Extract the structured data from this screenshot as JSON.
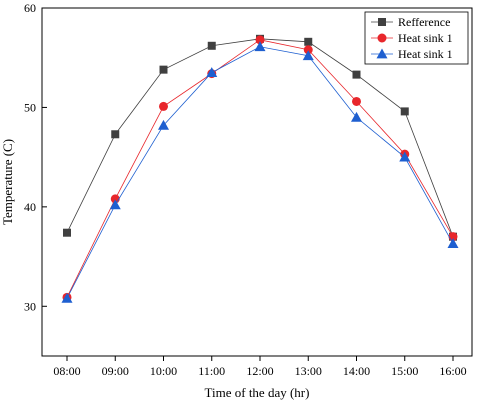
{
  "chart_data": {
    "type": "line",
    "title": "",
    "xlabel": "Time of the day (hr)",
    "ylabel": "Temperature (C)",
    "categories": [
      "08:00",
      "09:00",
      "10:00",
      "11:00",
      "12:00",
      "13:00",
      "14:00",
      "15:00",
      "16:00"
    ],
    "ylim": [
      25,
      60
    ],
    "yticks": [
      30,
      40,
      50,
      60
    ],
    "grid": false,
    "legend_position": "top-right",
    "series": [
      {
        "name": "Refference",
        "color": "#404040",
        "marker": "square",
        "values": [
          37.4,
          47.3,
          53.8,
          56.2,
          56.9,
          56.6,
          53.3,
          49.6,
          37.0
        ]
      },
      {
        "name": "Heat sink 1",
        "color": "#e8262b",
        "marker": "circle",
        "values": [
          30.9,
          40.8,
          50.1,
          53.4,
          56.8,
          55.8,
          50.6,
          45.3,
          37.0
        ]
      },
      {
        "name": "Heat sink 1",
        "color": "#1e5fd0",
        "marker": "triangle",
        "values": [
          30.8,
          40.2,
          48.2,
          53.5,
          56.1,
          55.2,
          49.0,
          45.0,
          36.3
        ]
      }
    ]
  }
}
